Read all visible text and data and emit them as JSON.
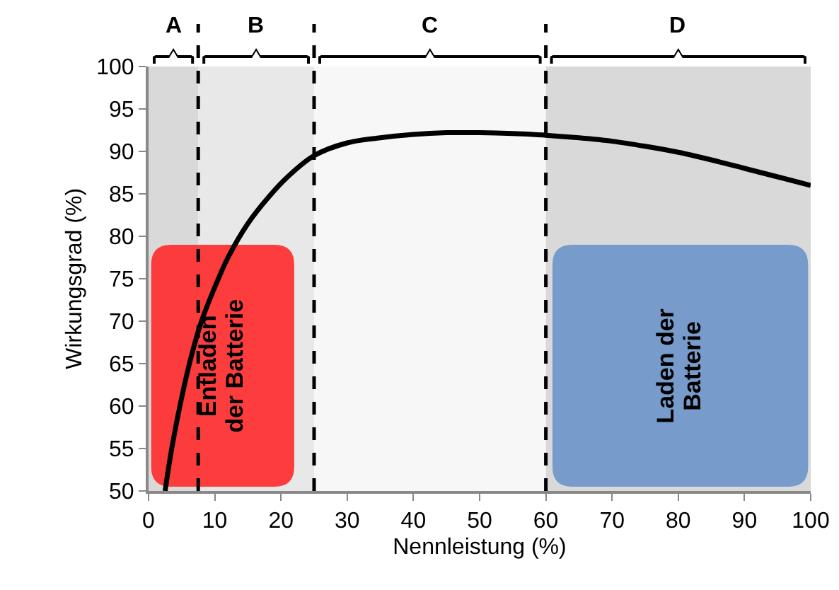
{
  "chart_data": {
    "type": "line",
    "xlabel": "Nennleistung (%)",
    "ylabel": "Wirkungsgrad (%)",
    "x": [
      2.5,
      3.5,
      5,
      6.5,
      8,
      10,
      12,
      15,
      18,
      21,
      25,
      30,
      35,
      40,
      45,
      50,
      55,
      60,
      65,
      70,
      75,
      80,
      85,
      90,
      95,
      100
    ],
    "series": [
      {
        "color": "#000000",
        "values": [
          50,
          55,
          61,
          66,
          70,
          74,
          77.5,
          81.5,
          84.5,
          87,
          89.5,
          91,
          91.6,
          92,
          92.2,
          92.2,
          92.1,
          91.9,
          91.6,
          91.2,
          90.6,
          89.9,
          89,
          88,
          87,
          86
        ]
      }
    ],
    "xlim": [
      0,
      100
    ],
    "xticks": [
      0,
      10,
      20,
      30,
      40,
      50,
      60,
      70,
      80,
      90,
      100
    ],
    "ylim": [
      50,
      100
    ],
    "yticks": [
      50,
      55,
      60,
      65,
      70,
      75,
      80,
      85,
      90,
      95,
      100
    ],
    "grid": false,
    "marker": "none",
    "line_style": "solid",
    "ref_lines": [
      {
        "axis": "x",
        "value": 7.5,
        "line_style": "dashed",
        "color": "#000000"
      },
      {
        "axis": "x",
        "value": 25,
        "line_style": "dashed",
        "color": "#000000"
      },
      {
        "axis": "x",
        "value": 60,
        "line_style": "dashed",
        "color": "#000000"
      }
    ],
    "bands": [
      {
        "axis": "x",
        "from": 0,
        "to": 7.5,
        "label": "A",
        "color": "#d9d9d9"
      },
      {
        "axis": "x",
        "from": 7.5,
        "to": 25,
        "label": "B",
        "color": "#e8e8e8"
      },
      {
        "axis": "x",
        "from": 25,
        "to": 60,
        "label": "C",
        "color": "#f7f7f7"
      },
      {
        "axis": "x",
        "from": 60,
        "to": 100,
        "label": "D",
        "color": "#d9d9d9"
      }
    ],
    "annotations": [
      "Entladen\nder Batterie",
      "Laden der\nBatterie"
    ]
  }
}
